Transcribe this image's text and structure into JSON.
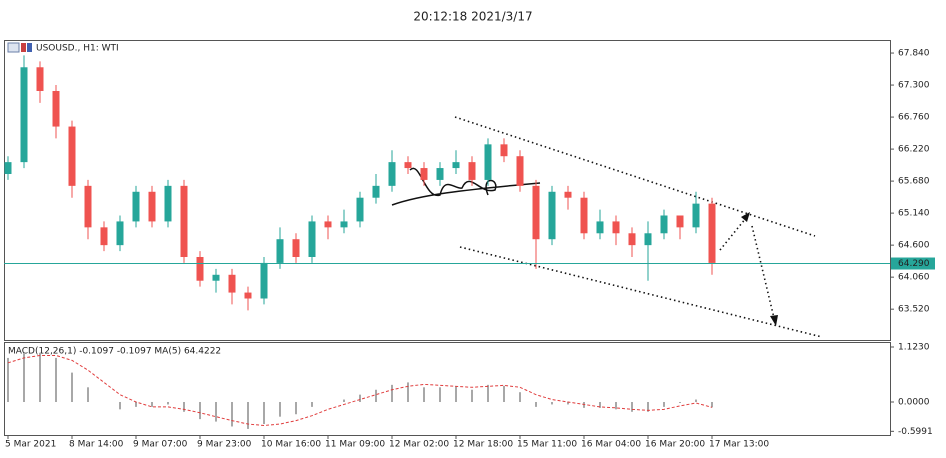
{
  "timestamp": "20:12:18 2021/3/17",
  "chart_data": [
    {
      "type": "candlestick",
      "title": "USOUSD., H1:  WTI",
      "categories": [
        "5 Mar 2021",
        null,
        null,
        null,
        "8 Mar 14:00",
        null,
        null,
        null,
        "9 Mar 07:00",
        null,
        null,
        null,
        "9 Mar 23:00",
        null,
        null,
        null,
        "10 Mar 16:00",
        null,
        null,
        null,
        "11 Mar 09:00",
        null,
        null,
        null,
        "12 Mar 02:00",
        null,
        null,
        null,
        "12 Mar 18:00",
        null,
        null,
        null,
        "15 Mar 11:00",
        null,
        null,
        null,
        "16 Mar 04:00",
        null,
        null,
        null,
        "16 Mar 20:00",
        null,
        null,
        null,
        "17 Mar 13:00"
      ],
      "open": [
        65.8,
        66.0,
        67.6,
        67.2,
        66.6,
        65.6,
        64.9,
        64.6,
        65.0,
        65.5,
        65.0,
        65.6,
        64.4,
        64.0,
        64.1,
        63.8,
        63.7,
        64.3,
        64.7,
        64.4,
        65.0,
        64.9,
        65.0,
        65.4,
        65.6,
        66.0,
        65.9,
        65.7,
        65.9,
        66.0,
        65.7,
        66.3,
        66.1,
        65.6,
        64.7,
        65.5,
        65.4,
        64.8,
        65.0,
        64.8,
        64.6,
        64.8,
        65.1,
        64.9,
        65.3
      ],
      "high": [
        66.1,
        67.8,
        67.7,
        67.3,
        66.7,
        65.7,
        65.0,
        65.1,
        65.6,
        65.6,
        65.7,
        65.7,
        64.5,
        64.2,
        64.2,
        63.9,
        64.4,
        64.9,
        64.8,
        65.1,
        65.1,
        65.2,
        65.5,
        65.8,
        66.2,
        66.1,
        66.0,
        66.0,
        66.2,
        66.1,
        66.4,
        66.4,
        66.2,
        65.7,
        65.6,
        65.6,
        65.5,
        65.2,
        65.1,
        64.9,
        65.0,
        65.2,
        65.1,
        65.5,
        65.4
      ],
      "low": [
        65.7,
        65.9,
        67.0,
        66.4,
        65.4,
        64.7,
        64.5,
        64.5,
        64.9,
        64.9,
        64.9,
        64.3,
        63.9,
        63.8,
        63.6,
        63.5,
        63.6,
        64.2,
        64.3,
        64.3,
        64.7,
        64.8,
        64.9,
        65.3,
        65.5,
        65.8,
        65.6,
        65.6,
        65.8,
        65.6,
        65.6,
        66.0,
        65.5,
        64.2,
        64.6,
        65.2,
        64.7,
        64.7,
        64.6,
        64.4,
        64.0,
        64.7,
        64.7,
        64.8,
        64.1
      ],
      "close": [
        66.0,
        67.6,
        67.2,
        66.6,
        65.6,
        64.9,
        64.6,
        65.0,
        65.5,
        65.0,
        65.6,
        64.4,
        64.0,
        64.1,
        63.8,
        63.7,
        64.3,
        64.7,
        64.4,
        65.0,
        64.9,
        65.0,
        65.4,
        65.6,
        66.0,
        65.9,
        65.7,
        65.9,
        66.0,
        65.7,
        66.3,
        66.1,
        65.6,
        64.7,
        65.5,
        65.4,
        64.8,
        65.0,
        64.8,
        64.6,
        64.8,
        65.1,
        64.9,
        65.3,
        64.3
      ],
      "up_color": "#26a69a",
      "down_color": "#ef5350",
      "ylim": [
        63.0,
        68.06
      ],
      "yticks": [
        {
          "value": 67.84,
          "label": "67.840"
        },
        {
          "value": 67.3,
          "label": "67.300"
        },
        {
          "value": 66.76,
          "label": "66.760"
        },
        {
          "value": 66.22,
          "label": "66.220"
        },
        {
          "value": 65.68,
          "label": "65.680"
        },
        {
          "value": 65.14,
          "label": "65.140"
        },
        {
          "value": 64.6,
          "label": "64.600"
        },
        {
          "value": 64.06,
          "label": "64.060"
        },
        {
          "value": 63.52,
          "label": "63.520"
        }
      ],
      "current_price": {
        "value": 64.29,
        "label": "64.290"
      },
      "current_price_color": "#26a69a"
    },
    {
      "type": "macd",
      "title": "MACD(12,26,1) -0.1097 -0.1097 MA(5) 64.4222",
      "histogram": {
        "color": "#a8a8a8",
        "values": [
          0.9,
          1.0,
          1.0,
          0.9,
          0.6,
          0.3,
          0.0,
          -0.15,
          -0.1,
          -0.1,
          -0.05,
          -0.2,
          -0.35,
          -0.4,
          -0.5,
          -0.55,
          -0.45,
          -0.3,
          -0.25,
          -0.1,
          0.0,
          0.05,
          0.15,
          0.25,
          0.35,
          0.4,
          0.3,
          0.3,
          0.32,
          0.25,
          0.35,
          0.33,
          0.2,
          -0.1,
          -0.05,
          -0.05,
          -0.12,
          -0.12,
          -0.15,
          -0.2,
          -0.2,
          -0.1,
          -0.02,
          0.05,
          -0.1097
        ]
      },
      "signal": {
        "color": "#e03c3c",
        "values": [
          0.8,
          0.9,
          0.95,
          0.95,
          0.85,
          0.65,
          0.4,
          0.15,
          0.0,
          -0.1,
          -0.1,
          -0.15,
          -0.22,
          -0.3,
          -0.38,
          -0.45,
          -0.48,
          -0.45,
          -0.38,
          -0.28,
          -0.15,
          -0.05,
          0.05,
          0.15,
          0.25,
          0.32,
          0.36,
          0.34,
          0.32,
          0.3,
          0.32,
          0.34,
          0.3,
          0.15,
          0.05,
          0.0,
          -0.05,
          -0.1,
          -0.12,
          -0.15,
          -0.17,
          -0.15,
          -0.08,
          -0.02,
          -0.1097
        ]
      },
      "ylim": [
        -0.674,
        1.225
      ],
      "yticks": [
        {
          "value": 1.123,
          "label": "1.1230"
        },
        {
          "value": 0,
          "label": "0.0000"
        },
        {
          "value": -0.5991,
          "label": "-0.5991"
        }
      ]
    }
  ]
}
